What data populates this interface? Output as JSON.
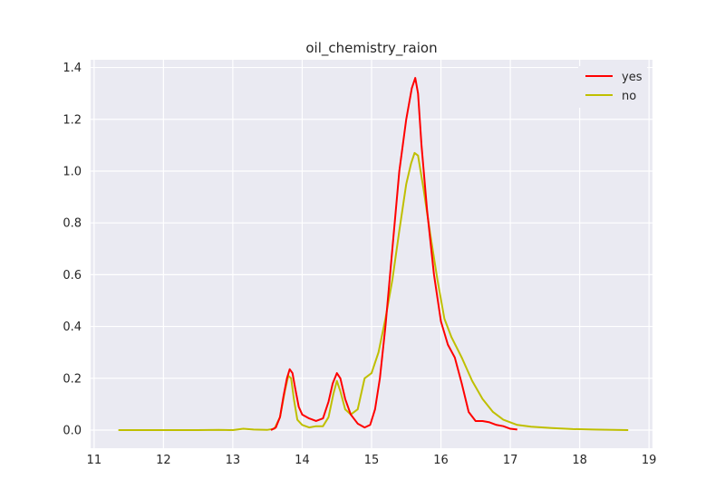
{
  "chart_data": {
    "type": "line",
    "title": "oil_chemistry_raion",
    "xlabel": "",
    "ylabel": "",
    "xlim": [
      10.95,
      19.05
    ],
    "ylim": [
      -0.07,
      1.43
    ],
    "x_ticks": [
      11,
      12,
      13,
      14,
      15,
      16,
      17,
      18,
      19
    ],
    "x_tick_labels": [
      "11",
      "12",
      "13",
      "14",
      "15",
      "16",
      "17",
      "18",
      "19"
    ],
    "y_ticks": [
      0.0,
      0.2,
      0.4,
      0.6,
      0.8,
      1.0,
      1.2,
      1.4
    ],
    "y_tick_labels": [
      "0.0",
      "0.2",
      "0.4",
      "0.6",
      "0.8",
      "1.0",
      "1.2",
      "1.4"
    ],
    "grid": true,
    "background": "#eaeaf2",
    "legend_position": "top-right",
    "series": [
      {
        "name": "yes",
        "color": "#ff0000",
        "points": [
          [
            13.55,
            0.0
          ],
          [
            13.62,
            0.01
          ],
          [
            13.68,
            0.05
          ],
          [
            13.73,
            0.13
          ],
          [
            13.78,
            0.2
          ],
          [
            13.82,
            0.235
          ],
          [
            13.86,
            0.22
          ],
          [
            13.9,
            0.16
          ],
          [
            13.95,
            0.09
          ],
          [
            14.0,
            0.06
          ],
          [
            14.1,
            0.045
          ],
          [
            14.2,
            0.035
          ],
          [
            14.3,
            0.045
          ],
          [
            14.38,
            0.11
          ],
          [
            14.44,
            0.18
          ],
          [
            14.5,
            0.22
          ],
          [
            14.55,
            0.2
          ],
          [
            14.62,
            0.12
          ],
          [
            14.7,
            0.06
          ],
          [
            14.8,
            0.025
          ],
          [
            14.9,
            0.01
          ],
          [
            14.98,
            0.02
          ],
          [
            15.05,
            0.08
          ],
          [
            15.12,
            0.2
          ],
          [
            15.2,
            0.4
          ],
          [
            15.3,
            0.7
          ],
          [
            15.4,
            1.0
          ],
          [
            15.5,
            1.2
          ],
          [
            15.58,
            1.32
          ],
          [
            15.63,
            1.36
          ],
          [
            15.67,
            1.3
          ],
          [
            15.72,
            1.1
          ],
          [
            15.8,
            0.85
          ],
          [
            15.9,
            0.6
          ],
          [
            16.0,
            0.42
          ],
          [
            16.1,
            0.33
          ],
          [
            16.2,
            0.28
          ],
          [
            16.3,
            0.18
          ],
          [
            16.4,
            0.07
          ],
          [
            16.5,
            0.035
          ],
          [
            16.6,
            0.035
          ],
          [
            16.7,
            0.03
          ],
          [
            16.8,
            0.02
          ],
          [
            16.9,
            0.015
          ],
          [
            17.0,
            0.005
          ],
          [
            17.1,
            0.002
          ]
        ]
      },
      {
        "name": "no",
        "color": "#bfbf00",
        "points": [
          [
            11.35,
            0.0
          ],
          [
            12.0,
            0.0
          ],
          [
            12.5,
            0.0
          ],
          [
            12.8,
            0.001
          ],
          [
            13.0,
            0.0
          ],
          [
            13.15,
            0.005
          ],
          [
            13.3,
            0.002
          ],
          [
            13.5,
            0.001
          ],
          [
            13.6,
            0.005
          ],
          [
            13.68,
            0.05
          ],
          [
            13.75,
            0.15
          ],
          [
            13.8,
            0.21
          ],
          [
            13.84,
            0.2
          ],
          [
            13.88,
            0.12
          ],
          [
            13.93,
            0.04
          ],
          [
            14.0,
            0.02
          ],
          [
            14.1,
            0.01
          ],
          [
            14.2,
            0.015
          ],
          [
            14.3,
            0.015
          ],
          [
            14.38,
            0.05
          ],
          [
            14.45,
            0.14
          ],
          [
            14.5,
            0.19
          ],
          [
            14.55,
            0.15
          ],
          [
            14.62,
            0.08
          ],
          [
            14.7,
            0.06
          ],
          [
            14.8,
            0.08
          ],
          [
            14.9,
            0.2
          ],
          [
            15.0,
            0.22
          ],
          [
            15.1,
            0.3
          ],
          [
            15.2,
            0.43
          ],
          [
            15.3,
            0.58
          ],
          [
            15.4,
            0.77
          ],
          [
            15.5,
            0.95
          ],
          [
            15.57,
            1.03
          ],
          [
            15.62,
            1.07
          ],
          [
            15.67,
            1.06
          ],
          [
            15.75,
            0.93
          ],
          [
            15.85,
            0.75
          ],
          [
            15.95,
            0.58
          ],
          [
            16.05,
            0.43
          ],
          [
            16.15,
            0.36
          ],
          [
            16.3,
            0.28
          ],
          [
            16.45,
            0.19
          ],
          [
            16.6,
            0.12
          ],
          [
            16.75,
            0.07
          ],
          [
            16.9,
            0.04
          ],
          [
            17.0,
            0.03
          ],
          [
            17.1,
            0.02
          ],
          [
            17.3,
            0.013
          ],
          [
            17.6,
            0.008
          ],
          [
            17.9,
            0.004
          ],
          [
            18.2,
            0.002
          ],
          [
            18.5,
            0.001
          ],
          [
            18.7,
            0.0
          ]
        ]
      }
    ]
  }
}
